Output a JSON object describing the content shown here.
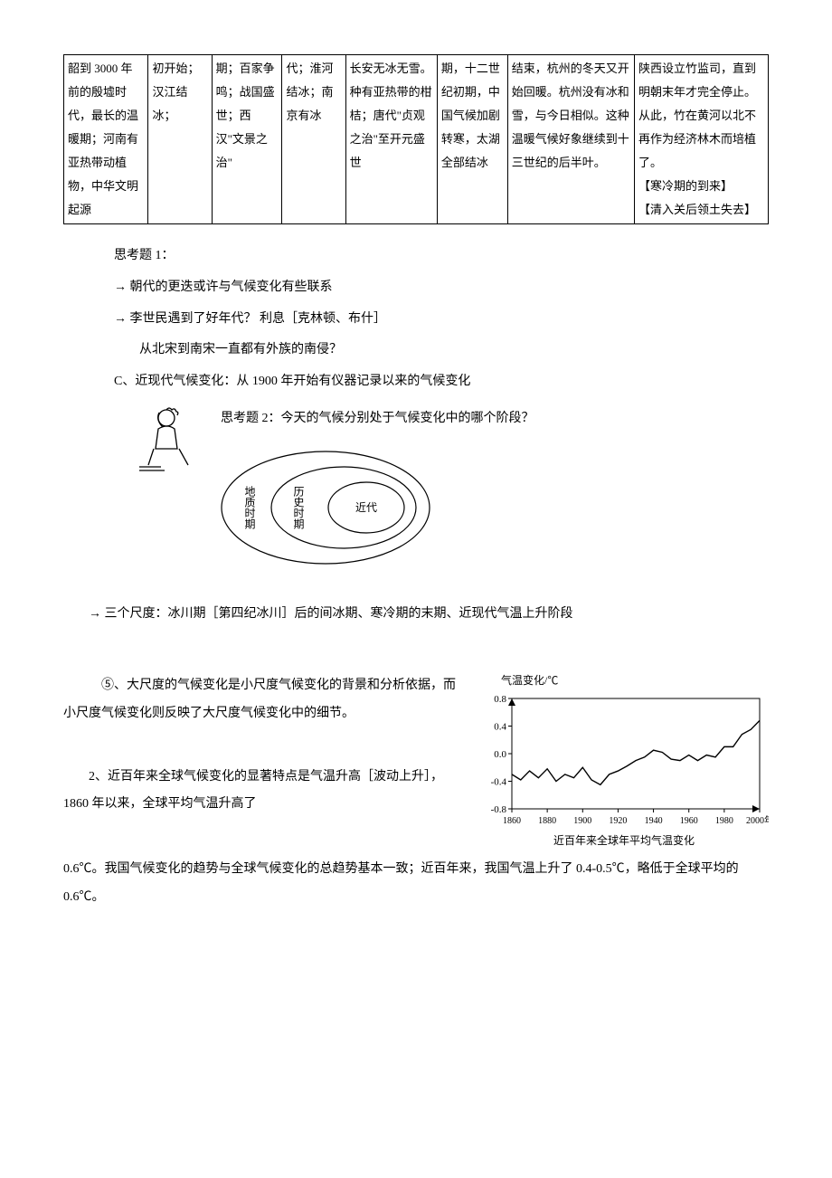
{
  "table": {
    "rows": [
      [
        "韶到 3000 年前的殷墟时代，最长的温暖期；河南有亚热带动植物，中华文明起源",
        "初开始；汉江结冰；",
        "期；百家争鸣；战国盛世；西汉\"文景之治\"",
        "代；淮河结冰；南京有冰",
        "长安无冰无雪。种有亚热带的柑桔；唐代\"贞观之治\"至开元盛世",
        "期，十二世纪初期，中国气候加剧转寒，太湖全部结冰",
        "结束，杭州的冬天又开始回暖。杭州没有冰和雪，与今日相似。这种温暖气候好象继续到十三世纪的后半叶。",
        "陕西设立竹监司，直到明朝末年才完全停止。从此，竹在黄河以北不再作为经济林木而培植了。\n【寒冷期的到来】\n【清入关后领土失去】"
      ]
    ]
  },
  "body": {
    "q1_title": "思考题 1：",
    "q1_line1": "→ 朝代的更迭或许与气候变化有些联系",
    "q1_line2": "→ 李世民遇到了好年代？  利息［克林顿、布什］",
    "q1_line3": "从北宋到南宋一直都有外族的南侵？",
    "c_line": "C、近现代气候变化：从 1900 年开始有仪器记录以来的气候变化",
    "q2_line": "思考题 2：今天的气候分别处于气候变化中的哪个阶段？",
    "ovals": {
      "outer": "地质时期",
      "middle": "历史时期",
      "inner": "近代"
    },
    "scale_line": "→ 三个尺度：冰川期［第四纪冰川］后的间冰期、寒冷期的末期、近现代气温上升阶段",
    "p5": "⑤、大尺度的气候变化是小尺度气候变化的背景和分析依据，而小尺度气候变化则反映了大尺度气候变化中的细节。",
    "p6a": "2、近百年来全球气候变化的显著特点是气温升高［波动上升］，1860 年以来，全球平均气温升高了",
    "p6b": "0.6℃。我国气候变化的趋势与全球气候变化的总趋势基本一致；近百年来，我国气温上升了 0.4-0.5℃，略低于全球平均的 0.6℃。"
  },
  "chart": {
    "type": "line",
    "title": "近百年来全球年平均气温变化",
    "ylabel": "气温变化/℃",
    "xlim": [
      1860,
      2000
    ],
    "ylim": [
      -0.8,
      0.8
    ],
    "xticks": [
      1860,
      1880,
      1900,
      1920,
      1940,
      1960,
      1980,
      2000
    ],
    "yticks": [
      -0.8,
      -0.4,
      0.0,
      0.4,
      0.8
    ],
    "xtick_labels": [
      "1860",
      "1880",
      "1900",
      "1920",
      "1940",
      "1960",
      "1980",
      "2000年"
    ],
    "ytick_labels": [
      "-0.8",
      "-0.4",
      "0.0",
      "0.4",
      "0.8"
    ],
    "line_color": "#000000",
    "axis_color": "#000000",
    "background_color": "#ffffff",
    "label_fontsize": 11,
    "data": [
      {
        "x": 1860,
        "y": -0.3
      },
      {
        "x": 1865,
        "y": -0.38
      },
      {
        "x": 1870,
        "y": -0.25
      },
      {
        "x": 1875,
        "y": -0.35
      },
      {
        "x": 1880,
        "y": -0.22
      },
      {
        "x": 1885,
        "y": -0.4
      },
      {
        "x": 1890,
        "y": -0.3
      },
      {
        "x": 1895,
        "y": -0.35
      },
      {
        "x": 1900,
        "y": -0.2
      },
      {
        "x": 1905,
        "y": -0.38
      },
      {
        "x": 1910,
        "y": -0.45
      },
      {
        "x": 1915,
        "y": -0.3
      },
      {
        "x": 1920,
        "y": -0.25
      },
      {
        "x": 1925,
        "y": -0.18
      },
      {
        "x": 1930,
        "y": -0.1
      },
      {
        "x": 1935,
        "y": -0.05
      },
      {
        "x": 1940,
        "y": 0.05
      },
      {
        "x": 1945,
        "y": 0.02
      },
      {
        "x": 1950,
        "y": -0.08
      },
      {
        "x": 1955,
        "y": -0.1
      },
      {
        "x": 1960,
        "y": -0.02
      },
      {
        "x": 1965,
        "y": -0.1
      },
      {
        "x": 1970,
        "y": -0.02
      },
      {
        "x": 1975,
        "y": -0.05
      },
      {
        "x": 1980,
        "y": 0.1
      },
      {
        "x": 1985,
        "y": 0.1
      },
      {
        "x": 1990,
        "y": 0.28
      },
      {
        "x": 1995,
        "y": 0.35
      },
      {
        "x": 2000,
        "y": 0.48
      }
    ]
  }
}
